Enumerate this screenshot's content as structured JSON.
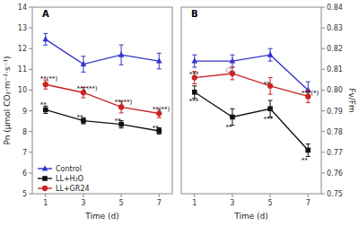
{
  "chart_data": [
    {
      "type": "line",
      "title": "A",
      "x_label": "Time (d)",
      "y_label": "Pn (μmol CO₂·m⁻²·s⁻¹)",
      "x": [
        1,
        3,
        5,
        7
      ],
      "xlim": [
        0.3,
        7.7
      ],
      "xticks": [
        1,
        3,
        5,
        7
      ],
      "ylim": [
        5,
        14
      ],
      "yticks": [
        5,
        6,
        7,
        8,
        9,
        10,
        11,
        12,
        13,
        14
      ],
      "grid": false,
      "legend": "lower left",
      "series": [
        {
          "name": "Control",
          "color": "#3333cc",
          "marker": "triangle",
          "values": [
            12.45,
            11.25,
            11.7,
            11.4
          ],
          "errors": [
            0.28,
            0.38,
            0.48,
            0.38
          ]
        },
        {
          "name": "LL+H₂O",
          "color": "#111111",
          "marker": "square",
          "values": [
            9.05,
            8.52,
            8.35,
            8.03
          ],
          "errors": [
            0.18,
            0.15,
            0.18,
            0.15
          ]
        },
        {
          "name": "LL+GR24",
          "color": "#cc2222",
          "marker": "circle",
          "values": [
            10.27,
            9.88,
            9.18,
            8.87
          ],
          "errors": [
            0.22,
            0.25,
            0.28,
            0.2
          ]
        }
      ],
      "annotations": [
        {
          "x": 0.72,
          "y": 10.55,
          "text": "**(**)"
        },
        {
          "x": 0.72,
          "y": 9.28,
          "text": "**"
        },
        {
          "x": 2.65,
          "y": 10.05,
          "text": "**(***)"
        },
        {
          "x": 2.65,
          "y": 8.68,
          "text": "**"
        },
        {
          "x": 4.65,
          "y": 9.42,
          "text": "**(**)"
        },
        {
          "x": 4.65,
          "y": 8.52,
          "text": "**"
        },
        {
          "x": 6.65,
          "y": 9.05,
          "text": "**(**)"
        },
        {
          "x": 6.65,
          "y": 8.18,
          "text": "**"
        }
      ]
    },
    {
      "type": "line",
      "title": "B",
      "x_label": "Time (d)",
      "y_label": "Fv/Fm",
      "x": [
        1,
        3,
        5,
        7
      ],
      "xlim": [
        0.3,
        7.7
      ],
      "xticks": [
        1,
        3,
        5,
        7
      ],
      "ylim": [
        0.75,
        0.84
      ],
      "yticks": [
        0.75,
        0.76,
        0.77,
        0.78,
        0.79,
        {
          "value": 0.8,
          "label": "0.80"
        },
        0.81,
        0.82,
        0.83,
        0.84
      ],
      "grid": false,
      "series": [
        {
          "color": "#3333cc",
          "marker": "triangle",
          "values": [
            0.814,
            0.814,
            0.817,
            0.8
          ],
          "errors": [
            0.003,
            0.003,
            0.003,
            0.004
          ]
        },
        {
          "color": "#111111",
          "marker": "square",
          "values": [
            0.799,
            0.787,
            0.791,
            0.771
          ],
          "errors": [
            0.003,
            0.004,
            0.004,
            0.003
          ]
        },
        {
          "color": "#cc2222",
          "marker": "circle",
          "values": [
            0.806,
            0.808,
            0.802,
            0.797
          ],
          "errors": [
            0.003,
            0.003,
            0.004,
            0.003
          ]
        }
      ],
      "annotations": [
        {
          "x": 0.72,
          "y": 0.8075,
          "text": "***"
        },
        {
          "x": 0.72,
          "y": 0.7945,
          "text": "***"
        },
        {
          "x": 2.65,
          "y": 0.8095,
          "text": "○"
        },
        {
          "x": 2.65,
          "y": 0.782,
          "text": "**"
        },
        {
          "x": 4.65,
          "y": 0.803,
          "text": "**"
        },
        {
          "x": 4.65,
          "y": 0.786,
          "text": "***"
        },
        {
          "x": 6.65,
          "y": 0.7985,
          "text": "***(*)"
        },
        {
          "x": 6.65,
          "y": 0.766,
          "text": "**"
        }
      ]
    }
  ]
}
